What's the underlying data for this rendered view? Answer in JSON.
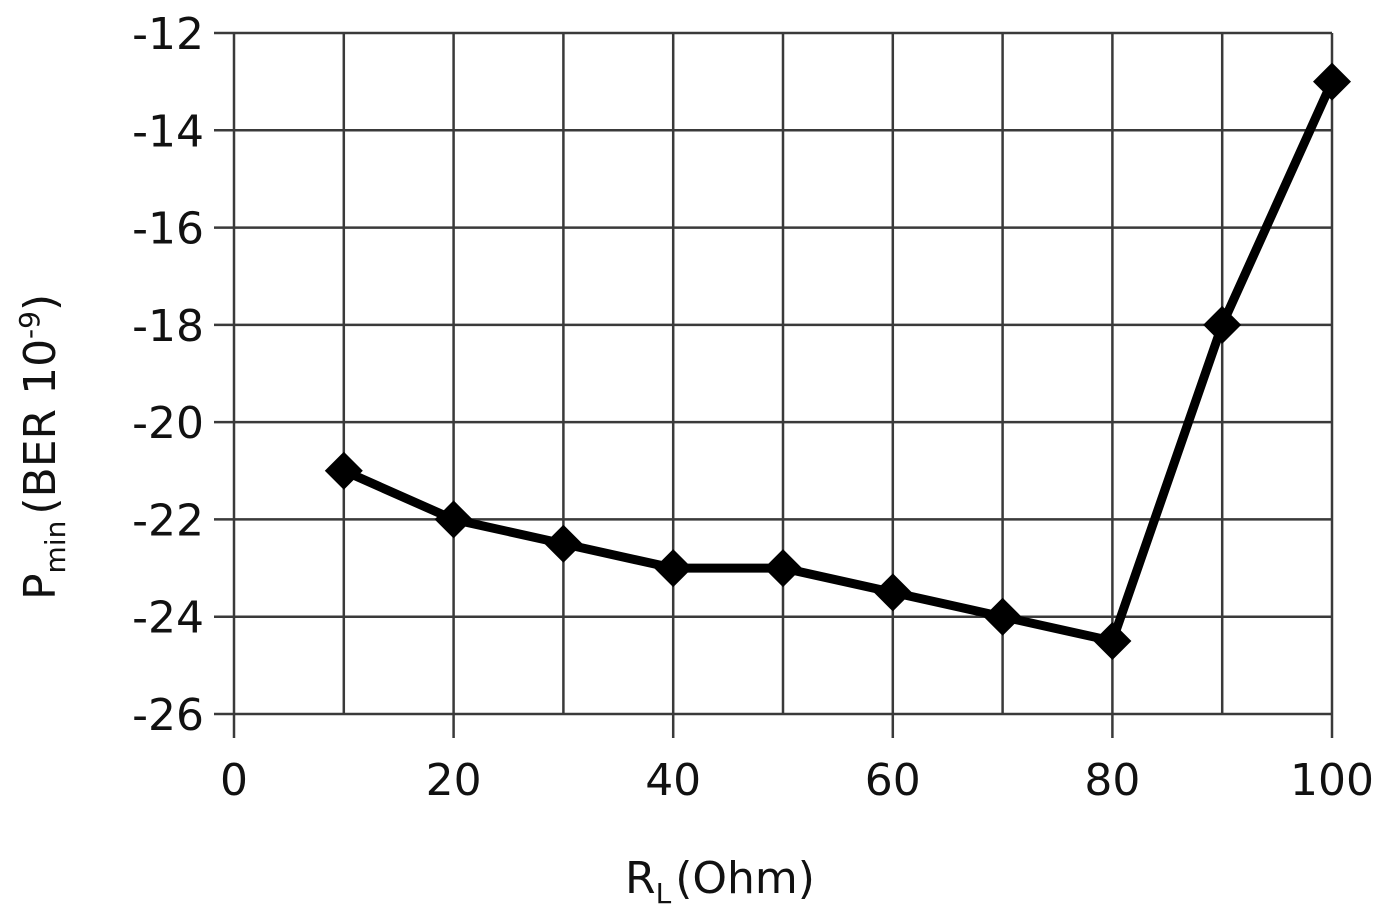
{
  "chart_data": {
    "type": "line",
    "title": "",
    "xlabel": "R_L (Ohm)",
    "xlabel_main": "R",
    "xlabel_sub": "L",
    "xlabel_rest": "(Ohm)",
    "ylabel": "P_min (BER 10^-9)",
    "ylabel_main": "P",
    "ylabel_sub": "min",
    "ylabel_rest": "(BER 10",
    "ylabel_sup": "-9",
    "ylabel_close": ")",
    "xlim": [
      0,
      100
    ],
    "ylim": [
      -26,
      -12
    ],
    "xticks": [
      0,
      20,
      40,
      60,
      80,
      100
    ],
    "yticks": [
      -12,
      -14,
      -16,
      -18,
      -20,
      -22,
      -24,
      -26
    ],
    "grid": true,
    "legend": null,
    "series": [
      {
        "name": "Pmin",
        "marker": "diamond",
        "color": "#000000",
        "x": [
          10,
          20,
          30,
          40,
          50,
          60,
          70,
          80,
          90,
          100
        ],
        "values": [
          -21,
          -22,
          -22.5,
          -23,
          -23,
          -23.5,
          -24,
          -24.5,
          -18,
          -13
        ]
      }
    ]
  }
}
